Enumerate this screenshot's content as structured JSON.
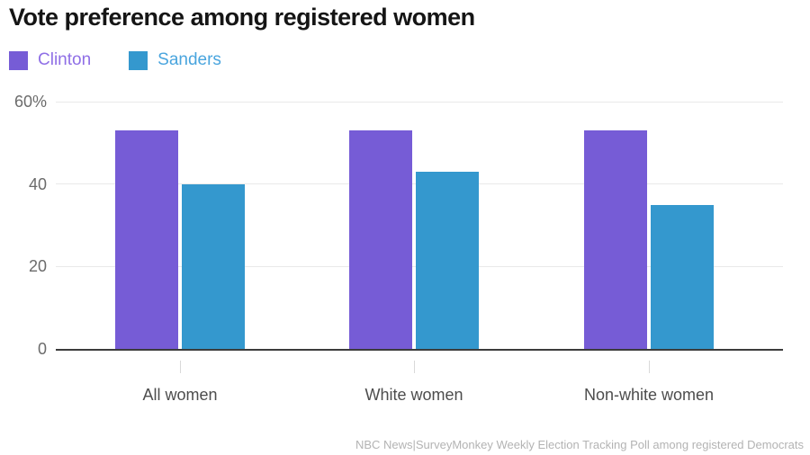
{
  "title": "Vote preference among registered women",
  "legend": [
    {
      "label": "Clinton",
      "color": "#765CD6",
      "text_color": "#8F6FE6"
    },
    {
      "label": "Sanders",
      "color": "#3498CE",
      "text_color": "#4AA5DE"
    }
  ],
  "source": "NBC News|SurveyMonkey Weekly Election Tracking Poll among registered Democrats",
  "chart_data": {
    "type": "bar",
    "title": "Vote preference among registered women",
    "categories": [
      "All women",
      "White women",
      "Non-white women"
    ],
    "series": [
      {
        "name": "Clinton",
        "color": "#765CD6",
        "values": [
          53,
          53,
          53
        ]
      },
      {
        "name": "Sanders",
        "color": "#3498CE",
        "values": [
          40,
          43,
          35
        ]
      }
    ],
    "xlabel": "",
    "ylabel": "",
    "ylim": [
      0,
      60
    ],
    "yticks": [
      0,
      20,
      40,
      60
    ],
    "ytick_labels": [
      "0",
      "20",
      "40",
      "60%"
    ],
    "grid": true,
    "legend_position": "top-left"
  }
}
